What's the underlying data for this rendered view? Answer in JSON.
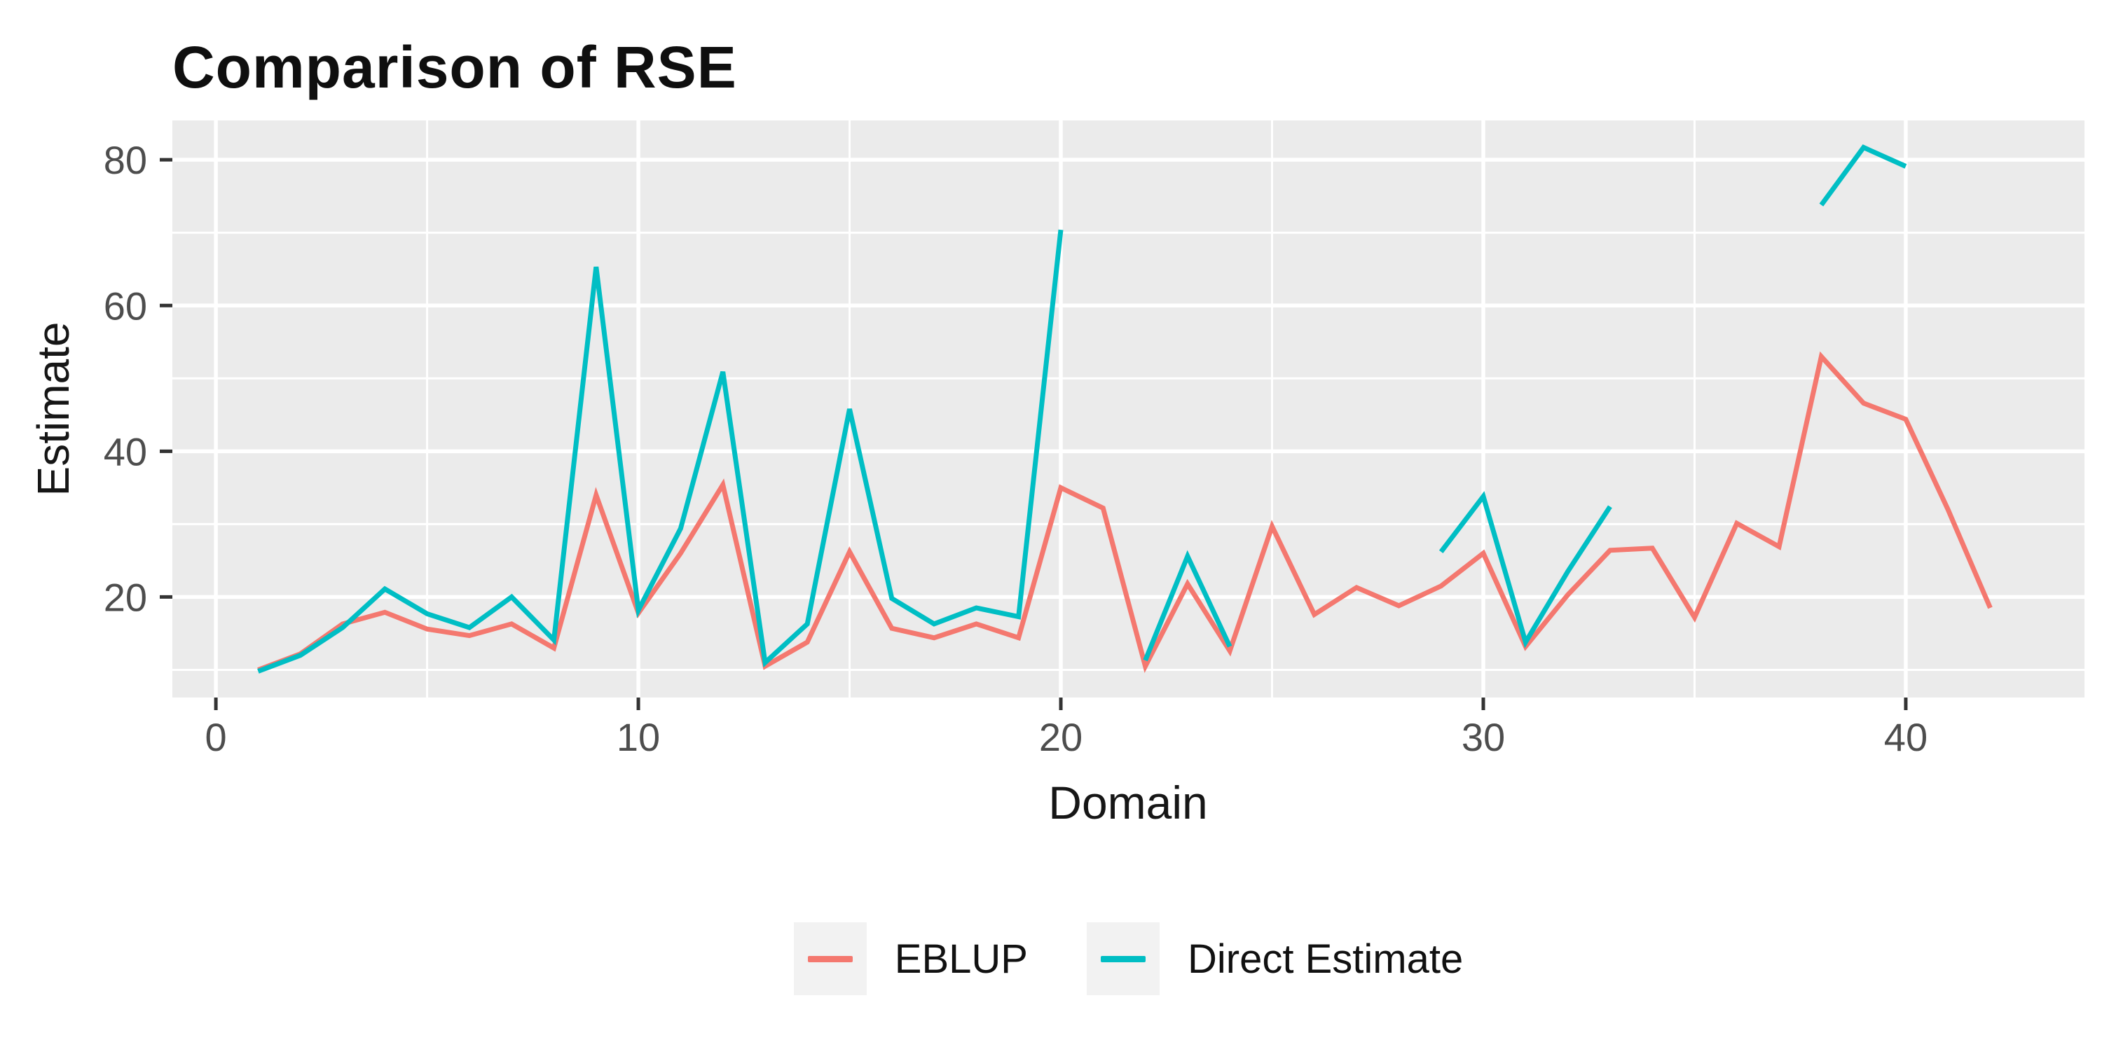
{
  "title": "Comparison of RSE",
  "axes": {
    "x_label": "Domain",
    "y_label": "Estimate",
    "x_ticks": [
      0,
      10,
      20,
      30,
      40
    ],
    "x_minor_ticks": [
      5,
      15,
      25,
      35
    ],
    "y_ticks": [
      20,
      40,
      60,
      80
    ],
    "y_minor_ticks": [
      10,
      30,
      50,
      70
    ]
  },
  "legend": {
    "items": [
      {
        "label": "EBLUP",
        "color": "#F4786F"
      },
      {
        "label": "Direct Estimate",
        "color": "#00BEC4"
      }
    ]
  },
  "colors": {
    "page_bg": "#FFFFFF",
    "panel_bg": "#EBEBEB",
    "grid": "#FFFFFF",
    "tick_mark": "#333333",
    "tick_label": "#4D4D4D",
    "title": "#0F0F0F",
    "axis_label": "#161616",
    "legend_key_bg": "#F2F2F2"
  },
  "chart_data": {
    "type": "line",
    "title": "Comparison of RSE",
    "xlabel": "Domain",
    "ylabel": "Estimate",
    "xlim": [
      -1.03,
      44.23
    ],
    "ylim": [
      6.2,
      85.4
    ],
    "grid": true,
    "legend_position": "bottom",
    "x": [
      1,
      2,
      3,
      4,
      5,
      6,
      7,
      8,
      9,
      10,
      11,
      12,
      13,
      14,
      15,
      16,
      17,
      18,
      19,
      20,
      21,
      22,
      23,
      24,
      25,
      26,
      27,
      28,
      29,
      30,
      31,
      32,
      33,
      34,
      35,
      36,
      37,
      38,
      39,
      40,
      41,
      42
    ],
    "series": [
      {
        "name": "EBLUP",
        "color": "#F4786F",
        "values": [
          10,
          12.2,
          16.3,
          17.9,
          15.6,
          14.7,
          16.3,
          13,
          34,
          17.8,
          26,
          35.4,
          10.5,
          13.8,
          26.2,
          15.7,
          14.4,
          16.3,
          14.4,
          35,
          32.2,
          10.5,
          21.8,
          12.6,
          29.7,
          17.6,
          21.3,
          18.8,
          21.5,
          26,
          13.2,
          20.3,
          26.4,
          26.7,
          17.2,
          30.1,
          26.9,
          53,
          46.6,
          44.4,
          32,
          18.5
        ]
      },
      {
        "name": "Direct Estimate",
        "color": "#00BEC4",
        "values": [
          9.8,
          12,
          15.8,
          21.1,
          17.7,
          15.8,
          20,
          14.1,
          65.3,
          18.2,
          29.4,
          50.9,
          11,
          16.3,
          45.8,
          19.8,
          16.3,
          18.5,
          17.3,
          70.4,
          null,
          11.3,
          25.6,
          13.2,
          null,
          null,
          null,
          null,
          26.2,
          33.8,
          13.8,
          23.5,
          32.4,
          null,
          null,
          null,
          null,
          73.8,
          81.7,
          79.1,
          null,
          null
        ]
      }
    ]
  }
}
